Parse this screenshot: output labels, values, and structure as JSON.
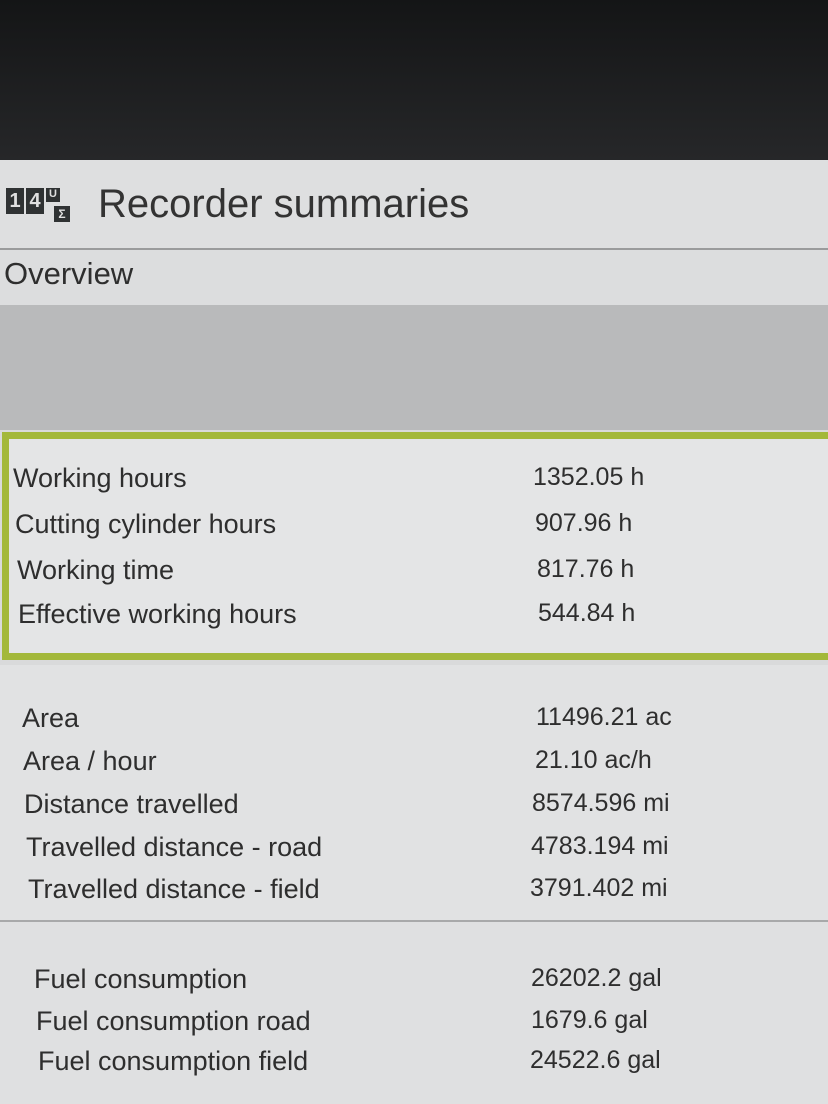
{
  "header": {
    "title": "Recorder summaries",
    "icon": "recorder-summary-icon",
    "icon_digits": [
      "1",
      "4"
    ],
    "icon_sub": "U",
    "icon_sigma": "Σ"
  },
  "section": {
    "label": "Overview"
  },
  "accent_color": "#a3b83a",
  "groups": [
    {
      "highlighted": true,
      "rows": [
        {
          "label": "Working hours",
          "value": "1352.05 h"
        },
        {
          "label": "Cutting cylinder hours",
          "value": "907.96 h"
        },
        {
          "label": "Working time",
          "value": "817.76 h"
        },
        {
          "label": "Effective working hours",
          "value": "544.84 h"
        }
      ]
    },
    {
      "rows": [
        {
          "label": "Area",
          "value": "11496.21 ac"
        },
        {
          "label": "Area / hour",
          "value": "21.10 ac/h"
        },
        {
          "label": "Distance travelled",
          "value": "8574.596 mi"
        },
        {
          "label": "Travelled distance - road",
          "value": "4783.194 mi"
        },
        {
          "label": "Travelled distance - field",
          "value": "3791.402 mi"
        }
      ]
    },
    {
      "rows": [
        {
          "label": "Fuel consumption",
          "value": "26202.2 gal"
        },
        {
          "label": "Fuel consumption road",
          "value": "1679.6 gal"
        },
        {
          "label": "Fuel consumption field",
          "value": "24522.6 gal"
        }
      ]
    }
  ]
}
